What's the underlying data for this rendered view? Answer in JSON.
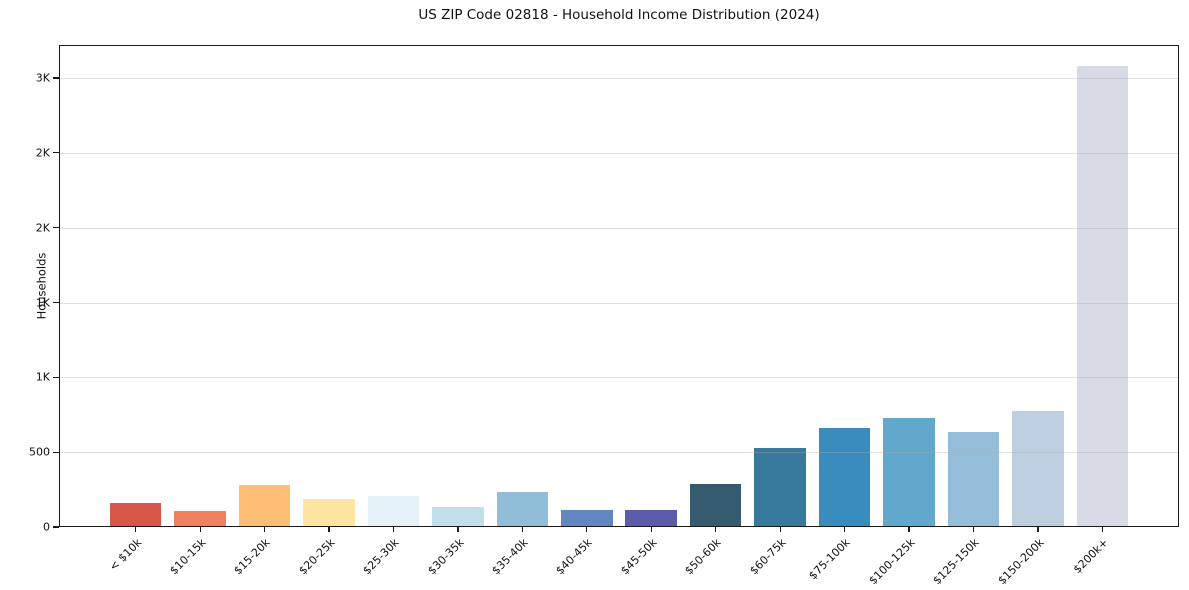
{
  "chart_data": {
    "type": "bar",
    "title": "US ZIP Code 02818 - Household Income Distribution (2024)",
    "xlabel": "",
    "ylabel": "Households",
    "categories": [
      "< $10k",
      "$10-15k",
      "$15-20k",
      "$20-25k",
      "$25-30k",
      "$30-35k",
      "$35-40k",
      "$40-45k",
      "$45-50k",
      "$50-60k",
      "$60-75k",
      "$75-100k",
      "$100-125k",
      "$125-150k",
      "$150-200k",
      "$200k+"
    ],
    "values": [
      160,
      105,
      280,
      185,
      205,
      135,
      235,
      115,
      115,
      290,
      525,
      660,
      725,
      635,
      775,
      3080
    ],
    "bar_colors": [
      "#d6564a",
      "#f0815f",
      "#fbbe74",
      "#fde5a0",
      "#e5f2f8",
      "#c0dfeb",
      "#91bdd9",
      "#6287c0",
      "#5c5cab",
      "#365a6e",
      "#377a9e",
      "#3a8cbe",
      "#62a8cc",
      "#93bdd9",
      "#bccedf",
      "#d8dae6"
    ],
    "ylim": [
      0,
      3220
    ],
    "yticks": [
      {
        "value": 0,
        "label": "0"
      },
      {
        "value": 500,
        "label": "500"
      },
      {
        "value": 1000,
        "label": "1K"
      },
      {
        "value": 1500,
        "label": "1K"
      },
      {
        "value": 2000,
        "label": "2K"
      },
      {
        "value": 2500,
        "label": "2K"
      },
      {
        "value": 3000,
        "label": "3K"
      }
    ],
    "grid": true,
    "grid_axis": "y",
    "legend": null,
    "background_color": "#ffffff",
    "spine_color": "#1a1a1a",
    "text_color": "#111111"
  }
}
